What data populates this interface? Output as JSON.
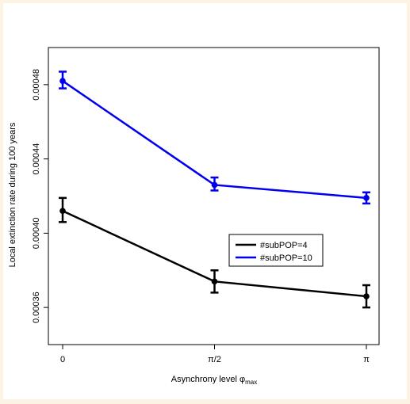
{
  "chart_data": {
    "type": "line",
    "title": "",
    "xlabel": "Asynchrony level φ",
    "xlabel_subscript": "max",
    "ylabel": "Local extinction rate during 100 years",
    "categories": [
      "0",
      "π/2",
      "π"
    ],
    "x": [
      0,
      1.5708,
      3.1416
    ],
    "xlim": [
      0,
      3.1416
    ],
    "ylim": [
      0.00034,
      0.0005
    ],
    "yticks": [
      0.00036,
      0.0004,
      0.00044,
      0.00048
    ],
    "ytick_labels": [
      "0.00036",
      "0.00040",
      "0.00044",
      "0.00048"
    ],
    "grid": false,
    "legend_position": "center-right",
    "series": [
      {
        "name": "#subPOP=4",
        "color": "#000000",
        "values": [
          0.000412,
          0.000374,
          0.000366
        ],
        "err_low": [
          0.000406,
          0.000368,
          0.00036
        ],
        "err_high": [
          0.000419,
          0.00038,
          0.000372
        ]
      },
      {
        "name": "#subPOP=10",
        "color": "#0000ee",
        "values": [
          0.000482,
          0.000426,
          0.000419
        ],
        "err_low": [
          0.000478,
          0.000423,
          0.000416
        ],
        "err_high": [
          0.000487,
          0.00043,
          0.000422
        ]
      }
    ]
  }
}
